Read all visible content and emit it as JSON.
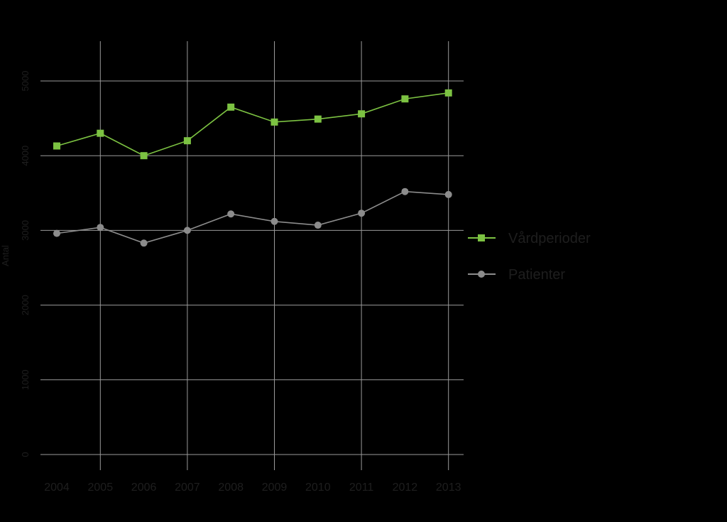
{
  "chart_data": {
    "type": "line",
    "title": "",
    "xlabel": "",
    "ylabel": "Antal",
    "categories": [
      "2004",
      "2005",
      "2006",
      "2007",
      "2008",
      "2009",
      "2010",
      "2011",
      "2012",
      "2013"
    ],
    "series": [
      {
        "name": "Vårdperioder",
        "values": [
          4130,
          4300,
          4000,
          4200,
          4650,
          4450,
          4490,
          4560,
          4760,
          4840
        ],
        "color": "#7cc242",
        "marker": "square"
      },
      {
        "name": "Patienter",
        "values": [
          2960,
          3040,
          2830,
          3000,
          3220,
          3120,
          3070,
          3230,
          3520,
          3480
        ],
        "color": "#8c8c8c",
        "marker": "circle"
      }
    ],
    "ylim": [
      0,
      5000
    ],
    "yticks": [
      "0",
      "1000",
      "2000",
      "3000",
      "4000",
      "5000"
    ],
    "grid": true,
    "legend_position": "right",
    "colors": {
      "background": "#000000",
      "grid": "#9a9a9a",
      "text": "#1e1e1e"
    }
  }
}
